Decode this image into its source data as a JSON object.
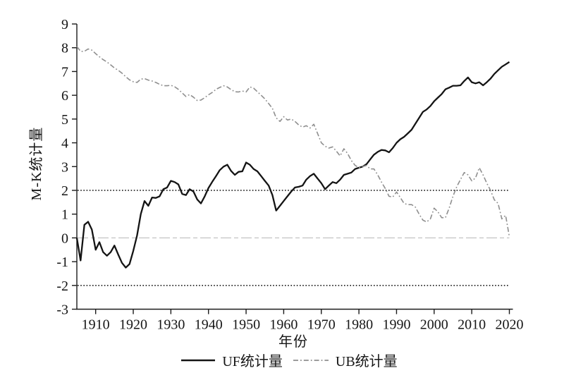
{
  "chart_data": {
    "type": "line",
    "title": "",
    "xlabel": "年份",
    "ylabel": "M-K统计量",
    "x_range": [
      1905,
      2020
    ],
    "x_step": 1,
    "ylim": [
      -3,
      9
    ],
    "x_ticks": [
      1910,
      1920,
      1930,
      1940,
      1950,
      1960,
      1970,
      1980,
      1990,
      2000,
      2010,
      2020
    ],
    "y_ticks": [
      -3,
      -2,
      -1,
      0,
      1,
      2,
      3,
      4,
      5,
      6,
      7,
      8,
      9
    ],
    "grid": false,
    "legend_position": "bottom-center",
    "axis_color": "#1a1a1a",
    "reference_lines": [
      {
        "label": "upper-critical-value",
        "value": 2,
        "color": "#1a1a1a",
        "dash": "1.6 2.6",
        "width": 1.6
      },
      {
        "label": "lower-critical-value",
        "value": -2,
        "color": "#1a1a1a",
        "dash": "1.6 2.6",
        "width": 1.6
      },
      {
        "label": "zero-line",
        "value": 0,
        "color": "#c3c3c3",
        "dash": "15 4 6 4",
        "width": 1.2
      }
    ],
    "series": [
      {
        "name": "UF统计量",
        "style": "solid",
        "color": "#141414",
        "width": 2.3,
        "values": [
          0.0,
          -0.95,
          0.55,
          0.68,
          0.35,
          -0.5,
          -0.18,
          -0.6,
          -0.75,
          -0.6,
          -0.32,
          -0.7,
          -1.05,
          -1.25,
          -1.1,
          -0.55,
          0.1,
          1.0,
          1.55,
          1.35,
          1.7,
          1.68,
          1.75,
          2.05,
          2.12,
          2.4,
          2.35,
          2.25,
          1.85,
          1.8,
          2.05,
          1.95,
          1.62,
          1.45,
          1.75,
          2.1,
          2.36,
          2.6,
          2.85,
          3.0,
          3.08,
          2.82,
          2.65,
          2.78,
          2.8,
          3.17,
          3.08,
          2.9,
          2.8,
          2.6,
          2.4,
          2.2,
          1.8,
          1.15,
          1.35,
          1.55,
          1.75,
          1.95,
          2.12,
          2.15,
          2.2,
          2.45,
          2.6,
          2.7,
          2.5,
          2.3,
          2.05,
          2.2,
          2.35,
          2.3,
          2.45,
          2.65,
          2.7,
          2.75,
          2.9,
          2.95,
          3.0,
          3.1,
          3.3,
          3.5,
          3.62,
          3.7,
          3.68,
          3.6,
          3.78,
          4.0,
          4.15,
          4.25,
          4.4,
          4.55,
          4.8,
          5.05,
          5.3,
          5.4,
          5.55,
          5.75,
          5.9,
          6.05,
          6.25,
          6.32,
          6.4,
          6.4,
          6.42,
          6.6,
          6.75,
          6.55,
          6.5,
          6.55,
          6.42,
          6.55,
          6.7,
          6.9,
          7.05,
          7.2,
          7.3,
          7.4
        ]
      },
      {
        "name": "UB统计量",
        "style": "dashdot",
        "color": "#8f8f8f",
        "width": 1.6,
        "values": [
          8.05,
          7.85,
          7.85,
          7.95,
          7.9,
          7.75,
          7.62,
          7.5,
          7.4,
          7.28,
          7.15,
          7.05,
          6.93,
          6.78,
          6.65,
          6.57,
          6.54,
          6.68,
          6.7,
          6.64,
          6.6,
          6.54,
          6.46,
          6.4,
          6.4,
          6.42,
          6.36,
          6.25,
          6.1,
          5.95,
          6.03,
          5.92,
          5.78,
          5.8,
          5.9,
          6.02,
          6.12,
          6.25,
          6.33,
          6.4,
          6.35,
          6.24,
          6.15,
          6.14,
          6.18,
          6.14,
          6.35,
          6.3,
          6.15,
          6.0,
          5.85,
          5.65,
          5.45,
          5.05,
          4.9,
          5.1,
          4.96,
          5.0,
          4.9,
          4.75,
          4.66,
          4.72,
          4.62,
          4.78,
          4.4,
          4.0,
          3.86,
          3.78,
          3.83,
          3.65,
          3.45,
          3.75,
          3.55,
          3.25,
          3.05,
          2.95,
          3.0,
          3.05,
          2.9,
          2.9,
          2.65,
          2.35,
          2.08,
          1.75,
          1.72,
          1.93,
          1.7,
          1.45,
          1.4,
          1.4,
          1.3,
          1.0,
          0.75,
          0.67,
          0.8,
          1.25,
          1.1,
          0.85,
          0.85,
          1.25,
          1.75,
          2.15,
          2.45,
          2.75,
          2.65,
          2.4,
          2.52,
          2.95,
          2.65,
          2.3,
          2.0,
          1.6,
          1.45,
          0.8,
          0.95,
          0.05
        ]
      }
    ]
  }
}
